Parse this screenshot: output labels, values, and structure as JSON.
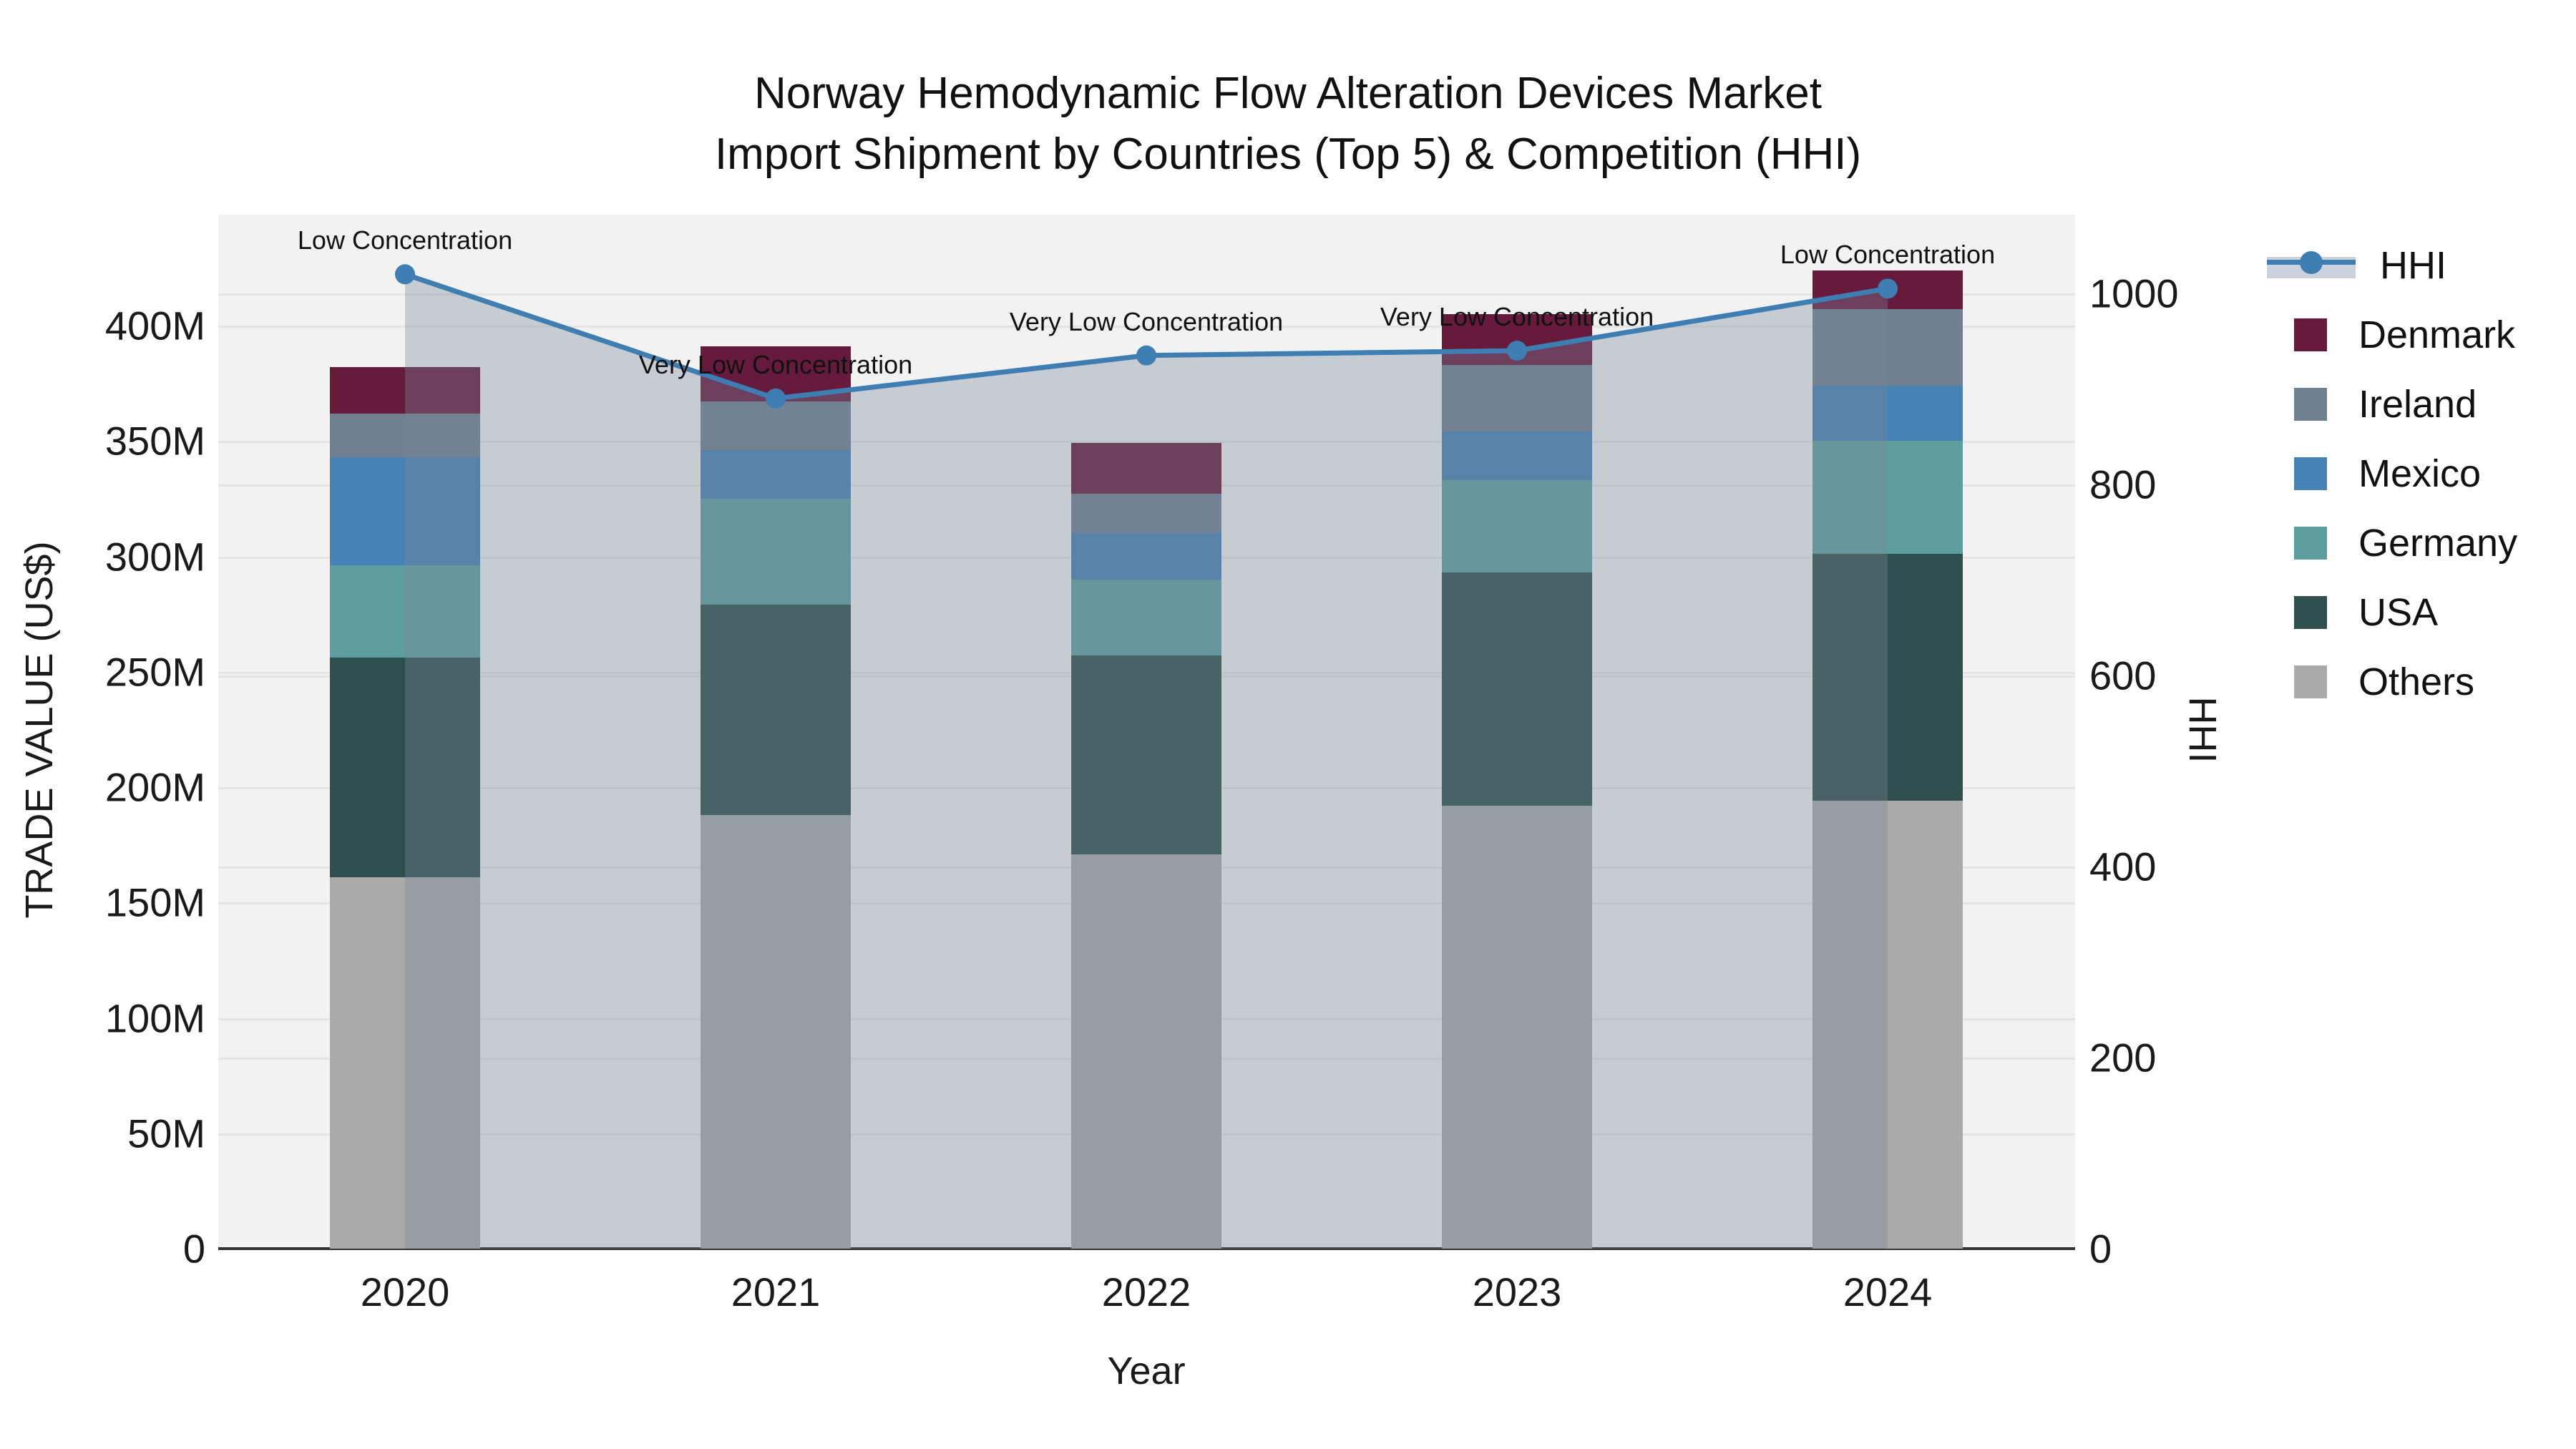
{
  "title": {
    "line1": "Norway Hemodynamic Flow Alteration Devices Market",
    "line2": "Import Shipment by Countries (Top 5) & Competition (HHI)"
  },
  "axes": {
    "left": {
      "title": "TRADE VALUE (US$)",
      "tick_labels": [
        "0",
        "50M",
        "100M",
        "150M",
        "200M",
        "250M",
        "300M",
        "350M",
        "400M"
      ],
      "tick_values": [
        0,
        50,
        100,
        150,
        200,
        250,
        300,
        350,
        400
      ]
    },
    "right": {
      "title": "HHI",
      "tick_labels": [
        "0",
        "200",
        "400",
        "600",
        "800",
        "1000"
      ],
      "tick_values": [
        0,
        200,
        400,
        600,
        800,
        1000
      ]
    },
    "x": {
      "title": "Year",
      "categories": [
        "2020",
        "2021",
        "2022",
        "2023",
        "2024"
      ]
    }
  },
  "legend": {
    "items": [
      {
        "label": "HHI",
        "type": "line",
        "color": "#3e7eb3"
      },
      {
        "label": "Denmark",
        "type": "swatch",
        "color": "#661b3c"
      },
      {
        "label": "Ireland",
        "type": "swatch",
        "color": "#708090"
      },
      {
        "label": "Mexico",
        "type": "swatch",
        "color": "#4682b4"
      },
      {
        "label": "Germany",
        "type": "swatch",
        "color": "#5f9ea0"
      },
      {
        "label": "USA",
        "type": "swatch",
        "color": "#2f4f4f"
      },
      {
        "label": "Others",
        "type": "swatch",
        "color": "#aaaaaa"
      }
    ]
  },
  "annotations": [
    {
      "category": "2020",
      "text": "Low Concentration"
    },
    {
      "category": "2021",
      "text": "Very Low Concentration"
    },
    {
      "category": "2022",
      "text": "Very Low Concentration"
    },
    {
      "category": "2023",
      "text": "Very Low Concentration"
    },
    {
      "category": "2024",
      "text": "Low Concentration"
    }
  ],
  "chart_data": {
    "type": "bar",
    "subtype": "stacked-bars-with-line-overlay",
    "title": "Norway Hemodynamic Flow Alteration Devices Market — Import Shipment by Countries (Top 5) & Competition (HHI)",
    "categories": [
      "2020",
      "2021",
      "2022",
      "2023",
      "2024"
    ],
    "xlabel": "Year",
    "ylabel_left": "TRADE VALUE (US$)",
    "ylabel_right": "HHI",
    "ylim_left_millions": [
      0,
      430
    ],
    "ylim_right_hhi": [
      0,
      1070
    ],
    "grid": true,
    "legend_position": "right",
    "bar_stack_order_bottom_to_top": [
      "Others",
      "USA",
      "Germany",
      "Mexico",
      "Ireland",
      "Denmark"
    ],
    "series": [
      {
        "name": "Others",
        "unit": "M US$",
        "color": "#aaaaaa",
        "values": [
          161,
          188,
          171,
          192,
          194
        ]
      },
      {
        "name": "USA",
        "unit": "M US$",
        "color": "#2f4f4f",
        "values": [
          95,
          91,
          86,
          101,
          107
        ]
      },
      {
        "name": "Germany",
        "unit": "M US$",
        "color": "#5f9ea0",
        "values": [
          40,
          46,
          33,
          40,
          49
        ]
      },
      {
        "name": "Mexico",
        "unit": "M US$",
        "color": "#4682b4",
        "values": [
          47,
          21,
          20,
          21,
          24
        ]
      },
      {
        "name": "Ireland",
        "unit": "M US$",
        "color": "#708090",
        "values": [
          19,
          21,
          17,
          29,
          33
        ]
      },
      {
        "name": "Denmark",
        "unit": "M US$",
        "color": "#661b3c",
        "values": [
          20,
          24,
          22,
          22,
          17
        ]
      }
    ],
    "bar_totals_millions": [
      382,
      391,
      349,
      405,
      424
    ],
    "line_series": {
      "name": "HHI",
      "color": "#3e7eb3",
      "fill_color": "rgba(119,136,153,0.35)",
      "fill": "to-zero-between-first-and-last-points",
      "values": [
        1020,
        890,
        935,
        940,
        1005
      ]
    },
    "colors": {
      "plot_background": "#f2f2f2",
      "figure_background": "#ffffff",
      "gridline": "#e4e4e4",
      "axis_line": "#333333",
      "hhi_band_legend": "#ccd2dd"
    }
  }
}
